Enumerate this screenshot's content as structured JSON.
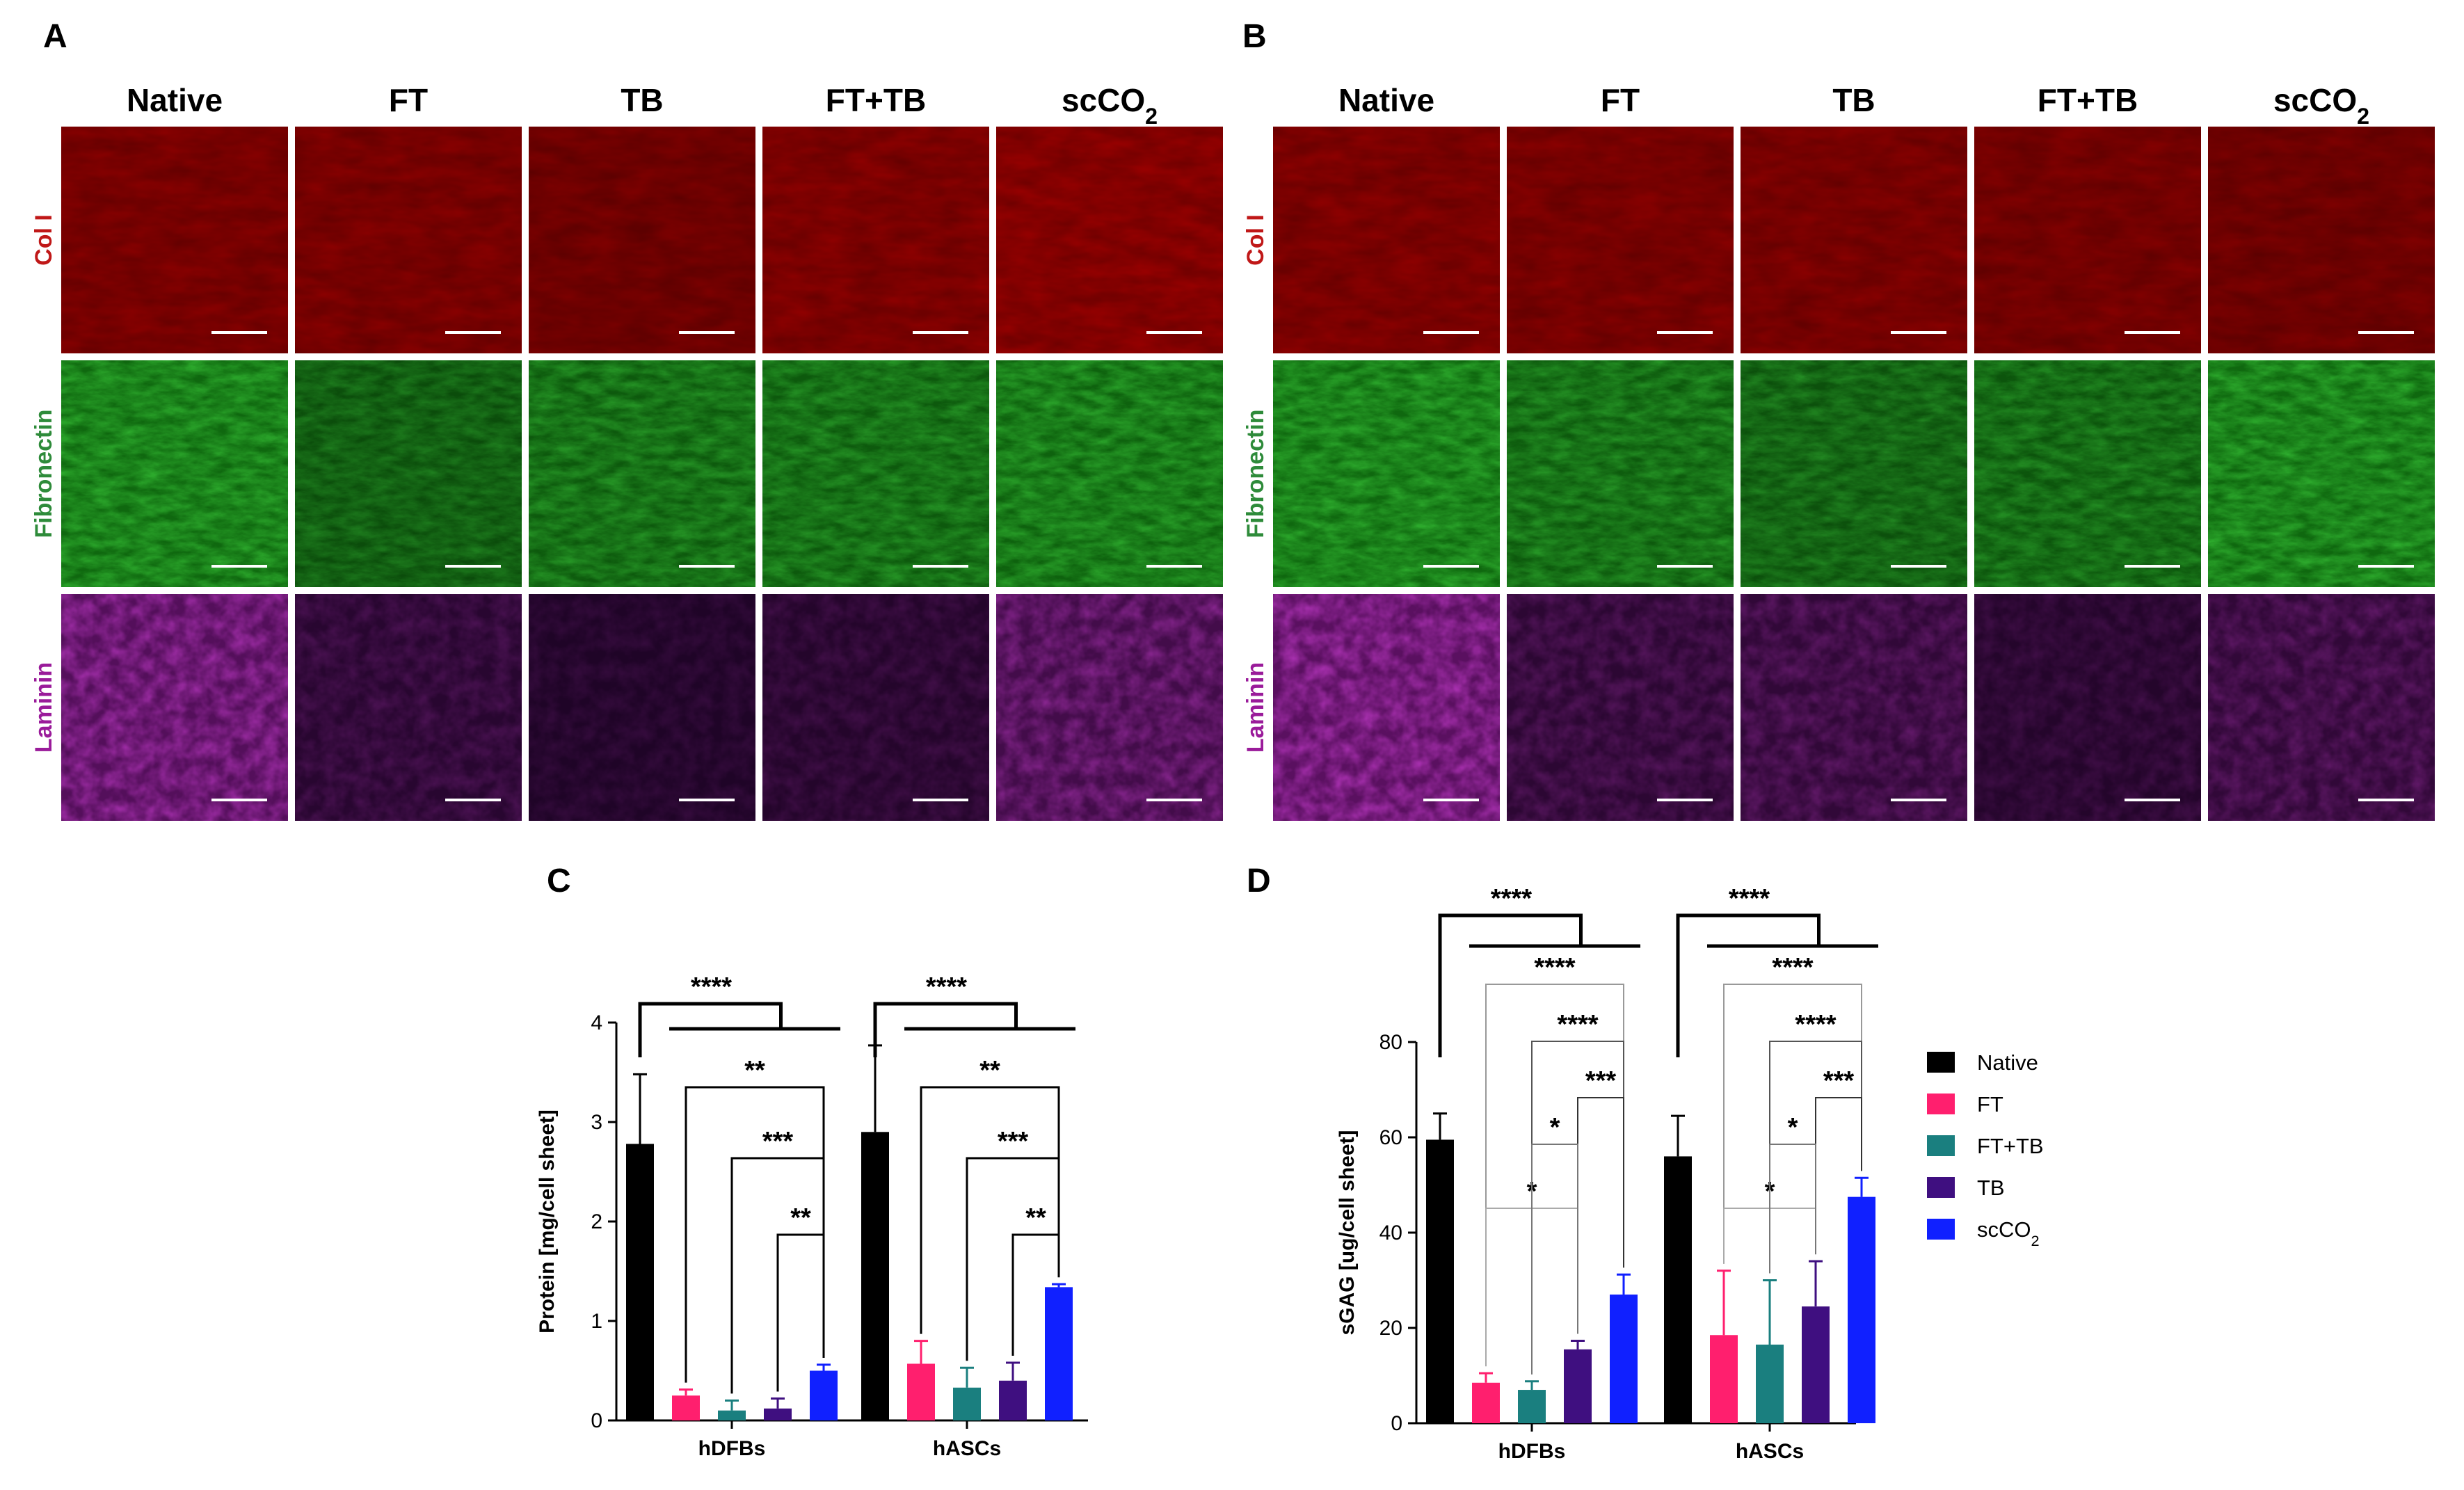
{
  "colors": {
    "col1": "#c01818",
    "fibronectin": "#2e8b3a",
    "laminin": "#9a1b9a",
    "tile_red": "#8c0000",
    "tile_green": "#1f8a1f",
    "tile_purple": "#3a0a3e"
  },
  "micrographs": [
    {
      "letter": "A",
      "columns": [
        "Native",
        "FT",
        "TB",
        "FT+TB",
        "scCO₂"
      ],
      "rows": [
        {
          "label": "Col I",
          "color": "#c01818",
          "intensity": [
            0.55,
            0.55,
            0.45,
            0.6,
            0.7
          ],
          "tint": "#a00000"
        },
        {
          "label": "Fibronectin",
          "color": "#2e8b3a",
          "intensity": [
            0.75,
            0.45,
            0.6,
            0.6,
            0.7
          ],
          "tint": "#17a017"
        },
        {
          "label": "Laminin",
          "color": "#9a1b9a",
          "intensity": [
            0.75,
            0.25,
            0.15,
            0.2,
            0.55
          ],
          "tint": "#8a1a8f"
        }
      ]
    },
    {
      "letter": "B",
      "columns": [
        "Native",
        "FT",
        "TB",
        "FT+TB",
        "scCO₂"
      ],
      "rows": [
        {
          "label": "Col I",
          "color": "#c01818",
          "intensity": [
            0.6,
            0.55,
            0.55,
            0.5,
            0.45
          ],
          "tint": "#a00000"
        },
        {
          "label": "Fibronectin",
          "color": "#2e8b3a",
          "intensity": [
            0.75,
            0.6,
            0.5,
            0.55,
            0.75
          ],
          "tint": "#17a017"
        },
        {
          "label": "Laminin",
          "color": "#9a1b9a",
          "intensity": [
            0.8,
            0.3,
            0.35,
            0.2,
            0.35
          ],
          "tint": "#8a1a8f"
        }
      ]
    }
  ],
  "chart_data": [
    {
      "panel": "C",
      "type": "bar",
      "ylabel": "Protein [mg/cell sheet]",
      "ylim": [
        0,
        4
      ],
      "yticks": [
        0,
        1,
        2,
        3,
        4
      ],
      "categories": [
        "hDFBs",
        "hASCs"
      ],
      "series": [
        {
          "name": "Native",
          "color": "#000000",
          "values": [
            2.78,
            2.9
          ],
          "errors": [
            0.7,
            0.87
          ]
        },
        {
          "name": "FT",
          "color": "#ff1f6e",
          "values": [
            0.25,
            0.57
          ],
          "errors": [
            0.06,
            0.23
          ]
        },
        {
          "name": "FT+TB",
          "color": "#1a7f7f",
          "values": [
            0.1,
            0.33
          ],
          "errors": [
            0.1,
            0.2
          ]
        },
        {
          "name": "TB",
          "color": "#3f0f80",
          "values": [
            0.12,
            0.4
          ],
          "errors": [
            0.1,
            0.18
          ]
        },
        {
          "name": "scCO₂",
          "color": "#1020ff",
          "values": [
            0.5,
            1.34
          ],
          "errors": [
            0.06,
            0.03
          ]
        }
      ],
      "significance": [
        {
          "group": 0,
          "label": "****",
          "kind": "native_vs_all"
        },
        {
          "group": 0,
          "from": 1,
          "to": 4,
          "label": "**"
        },
        {
          "group": 0,
          "from": 2,
          "to": 4,
          "label": "***"
        },
        {
          "group": 0,
          "from": 3,
          "to": 4,
          "label": "**"
        },
        {
          "group": 1,
          "label": "****",
          "kind": "native_vs_all"
        },
        {
          "group": 1,
          "from": 1,
          "to": 4,
          "label": "**"
        },
        {
          "group": 1,
          "from": 2,
          "to": 4,
          "label": "***"
        },
        {
          "group": 1,
          "from": 3,
          "to": 4,
          "label": "**"
        }
      ]
    },
    {
      "panel": "D",
      "type": "bar",
      "ylabel": "sGAG [ug/cell sheet]",
      "ylim": [
        0,
        80
      ],
      "yticks": [
        0,
        20,
        40,
        60,
        80
      ],
      "categories": [
        "hDFBs",
        "hASCs"
      ],
      "series": [
        {
          "name": "Native",
          "color": "#000000",
          "values": [
            59.5,
            56
          ],
          "errors": [
            5.5,
            8.5
          ]
        },
        {
          "name": "FT",
          "color": "#ff1f6e",
          "values": [
            8.5,
            18.5
          ],
          "errors": [
            2.0,
            13.5
          ]
        },
        {
          "name": "FT+TB",
          "color": "#1a7f7f",
          "values": [
            7,
            16.5
          ],
          "errors": [
            1.8,
            13.5
          ]
        },
        {
          "name": "TB",
          "color": "#3f0f80",
          "values": [
            15.5,
            24.5
          ],
          "errors": [
            1.8,
            9.5
          ]
        },
        {
          "name": "scCO₂",
          "color": "#1020ff",
          "values": [
            27,
            47.5
          ],
          "errors": [
            4.2,
            4.0
          ]
        }
      ],
      "significance": [
        {
          "group": 0,
          "label": "****",
          "kind": "native_vs_all"
        },
        {
          "group": 0,
          "from": 1,
          "to": 4,
          "label": "****"
        },
        {
          "group": 0,
          "from": 2,
          "to": 4,
          "label": "****"
        },
        {
          "group": 0,
          "from": 3,
          "to": 4,
          "label": "***"
        },
        {
          "group": 0,
          "from": 1,
          "to": 3,
          "label": "*"
        },
        {
          "group": 0,
          "from": 2,
          "to": 3,
          "label": "*"
        },
        {
          "group": 1,
          "label": "****",
          "kind": "native_vs_all"
        },
        {
          "group": 1,
          "from": 1,
          "to": 4,
          "label": "****"
        },
        {
          "group": 1,
          "from": 2,
          "to": 4,
          "label": "****"
        },
        {
          "group": 1,
          "from": 3,
          "to": 4,
          "label": "***"
        },
        {
          "group": 1,
          "from": 1,
          "to": 3,
          "label": "*"
        },
        {
          "group": 1,
          "from": 2,
          "to": 3,
          "label": "*"
        }
      ],
      "legend": {
        "placement": "right",
        "items": [
          {
            "name": "Native",
            "color": "#000000"
          },
          {
            "name": "FT",
            "color": "#ff1f6e"
          },
          {
            "name": "FT+TB",
            "color": "#1a7f7f"
          },
          {
            "name": "TB",
            "color": "#3f0f80"
          },
          {
            "name": "scCO₂",
            "color": "#1020ff"
          }
        ]
      }
    }
  ]
}
